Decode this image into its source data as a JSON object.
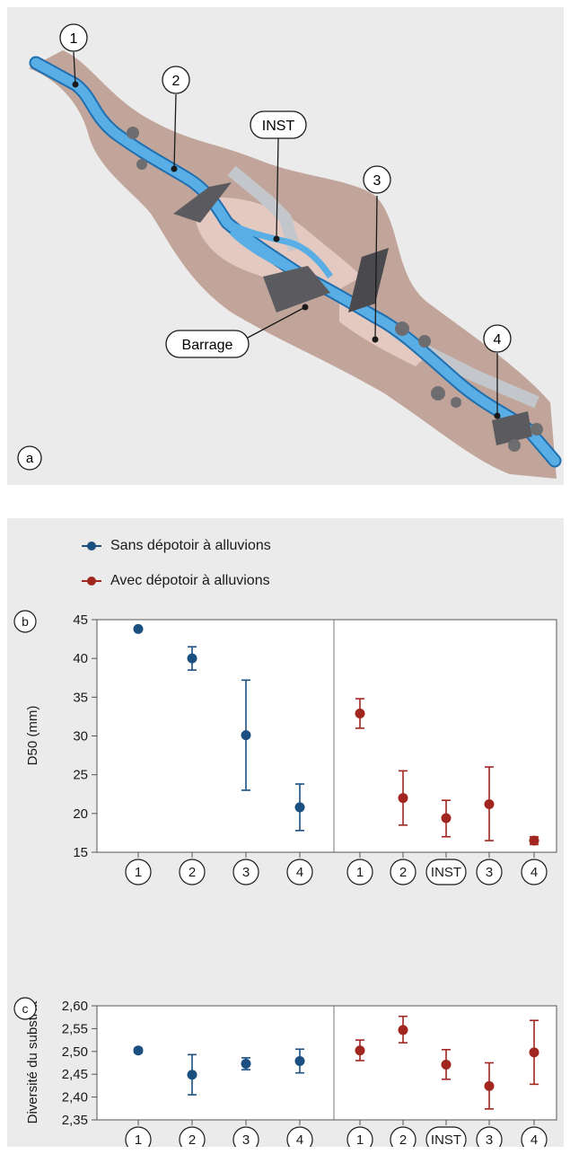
{
  "panel_a": {
    "letter": "a",
    "sites": [
      "1",
      "2",
      "INST",
      "3",
      "4"
    ],
    "dam_label": "Barrage"
  },
  "legend": {
    "without": "Sans dépotoir à alluvions",
    "with": "Avec dépotoir à alluvions"
  },
  "colors": {
    "without": "#1a4f80",
    "with": "#a0261f",
    "water": "#5aaee6",
    "bank": "#c2a59a",
    "panel": "#ebebeb"
  },
  "chart_data": [
    {
      "type": "scatter",
      "panel": "b",
      "ylabel": "D50 (mm)",
      "ylim": [
        15,
        45
      ],
      "yticks": [
        "15",
        "20",
        "25",
        "30",
        "35",
        "40",
        "45"
      ],
      "groups": [
        {
          "series": "Sans dépotoir à alluvions",
          "categories": [
            "1",
            "2",
            "3",
            "4"
          ],
          "values": [
            43.8,
            40.0,
            30.1,
            20.8
          ],
          "low": [
            43.6,
            38.5,
            23.0,
            17.8
          ],
          "high": [
            44.0,
            41.5,
            37.2,
            23.8
          ]
        },
        {
          "series": "Avec dépotoir à alluvions",
          "categories": [
            "1",
            "2",
            "INST",
            "3",
            "4"
          ],
          "values": [
            32.9,
            22.0,
            19.4,
            21.2,
            16.5
          ],
          "low": [
            31.0,
            18.5,
            17.0,
            16.5,
            16.0
          ],
          "high": [
            34.8,
            25.5,
            21.7,
            26.0,
            17.0
          ]
        }
      ]
    },
    {
      "type": "scatter",
      "panel": "c",
      "ylabel": "Diversité du substrat",
      "ylim": [
        2.35,
        2.6
      ],
      "yticks": [
        "2,35",
        "2,40",
        "2,45",
        "2,50",
        "2,55",
        "2,60"
      ],
      "groups": [
        {
          "series": "Sans dépotoir à alluvions",
          "categories": [
            "1",
            "2",
            "3",
            "4"
          ],
          "values": [
            2.502,
            2.449,
            2.473,
            2.479
          ],
          "low": [
            2.497,
            2.405,
            2.46,
            2.453
          ],
          "high": [
            2.507,
            2.493,
            2.486,
            2.505
          ]
        },
        {
          "series": "Avec dépotoir à alluvions",
          "categories": [
            "1",
            "2",
            "INST",
            "3",
            "4"
          ],
          "values": [
            2.502,
            2.547,
            2.471,
            2.424,
            2.498
          ],
          "low": [
            2.48,
            2.519,
            2.439,
            2.374,
            2.428
          ],
          "high": [
            2.525,
            2.577,
            2.504,
            2.475,
            2.568
          ]
        }
      ]
    }
  ]
}
